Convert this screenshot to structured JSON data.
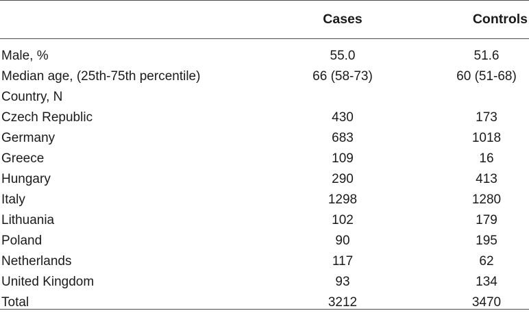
{
  "table": {
    "header": {
      "cases": "Cases",
      "controls": "Controls"
    },
    "rows": [
      {
        "label": "Male, %",
        "cases": "55.0",
        "controls": "51.6"
      },
      {
        "label": "Median age, (25th-75th percentile)",
        "cases": "66 (58-73)",
        "controls": "60 (51-68)"
      },
      {
        "label": "Country, N",
        "cases": "",
        "controls": ""
      },
      {
        "label": "Czech Republic",
        "cases": "430",
        "controls": "173"
      },
      {
        "label": "Germany",
        "cases": "683",
        "controls": "1018"
      },
      {
        "label": "Greece",
        "cases": "109",
        "controls": "16"
      },
      {
        "label": "Hungary",
        "cases": "290",
        "controls": "413"
      },
      {
        "label": "Italy",
        "cases": "1298",
        "controls": "1280"
      },
      {
        "label": "Lithuania",
        "cases": "102",
        "controls": "179"
      },
      {
        "label": "Poland",
        "cases": "90",
        "controls": "195"
      },
      {
        "label": "Netherlands",
        "cases": "117",
        "controls": "62"
      },
      {
        "label": "United Kingdom",
        "cases": "93",
        "controls": "134"
      },
      {
        "label": "Total",
        "cases": "3212",
        "controls": "3470"
      }
    ]
  }
}
